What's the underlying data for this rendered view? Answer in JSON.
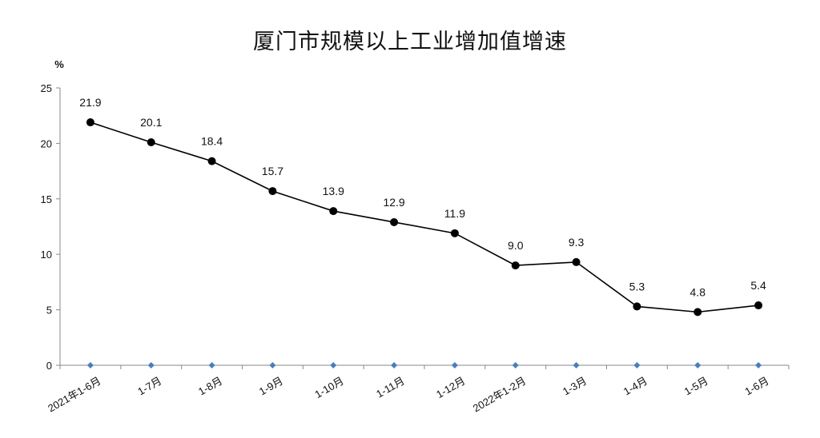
{
  "chart_data": {
    "type": "line",
    "title": "厦门市规模以上工业增加值增速",
    "ylabel": "%",
    "xlabel": "",
    "ylim": [
      0,
      25
    ],
    "yticks": [
      0,
      5,
      10,
      15,
      20,
      25
    ],
    "grid": false,
    "categories": [
      "2021年1-6月",
      "1-7月",
      "1-8月",
      "1-9月",
      "1-10月",
      "1-11月",
      "1-12月",
      "2022年1-2月",
      "1-3月",
      "1-4月",
      "1-5月",
      "1-6月"
    ],
    "series": [
      {
        "values": [
          21.9,
          20.1,
          18.4,
          15.7,
          13.9,
          12.9,
          11.9,
          9.0,
          9.3,
          5.3,
          4.8,
          5.4
        ],
        "labels": [
          "21.9",
          "20.1",
          "18.4",
          "15.7",
          "13.9",
          "12.9",
          "11.9",
          "9.0",
          "9.3",
          "5.3",
          "4.8",
          "5.4"
        ],
        "color": "#000000"
      }
    ],
    "axis_marker_color": "#4a7ebb"
  }
}
